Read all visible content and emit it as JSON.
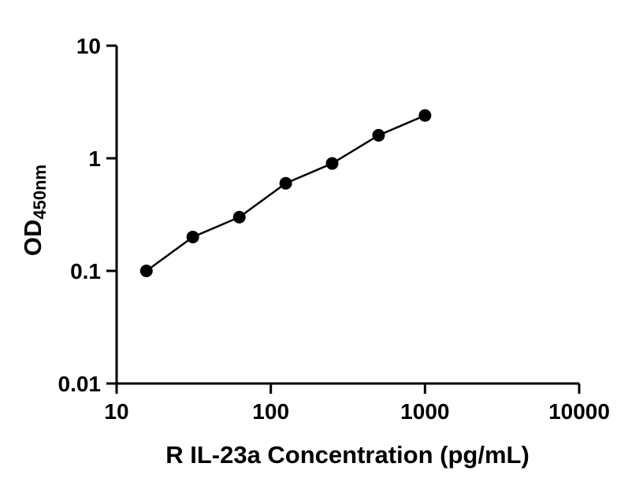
{
  "chart_data": {
    "type": "line",
    "title": "",
    "xlabel": "R IL-23a Concentration (pg/mL)",
    "ylabel_main": "OD",
    "ylabel_sub": "450nm",
    "x_scale": "log",
    "y_scale": "log",
    "xlim": [
      10,
      10000
    ],
    "ylim": [
      0.01,
      10
    ],
    "x_ticks": [
      10,
      100,
      1000,
      10000
    ],
    "y_ticks": [
      10,
      1,
      0.1,
      0.01
    ],
    "x": [
      15.6,
      31.2,
      62.5,
      125,
      250,
      500,
      1000
    ],
    "y": [
      0.1,
      0.2,
      0.3,
      0.6,
      0.9,
      1.6,
      2.4
    ],
    "grid": false,
    "legend": "none",
    "marker": "filled-circle",
    "marker_color": "#000000",
    "line_color": "#000000",
    "axis_color": "#000000"
  }
}
